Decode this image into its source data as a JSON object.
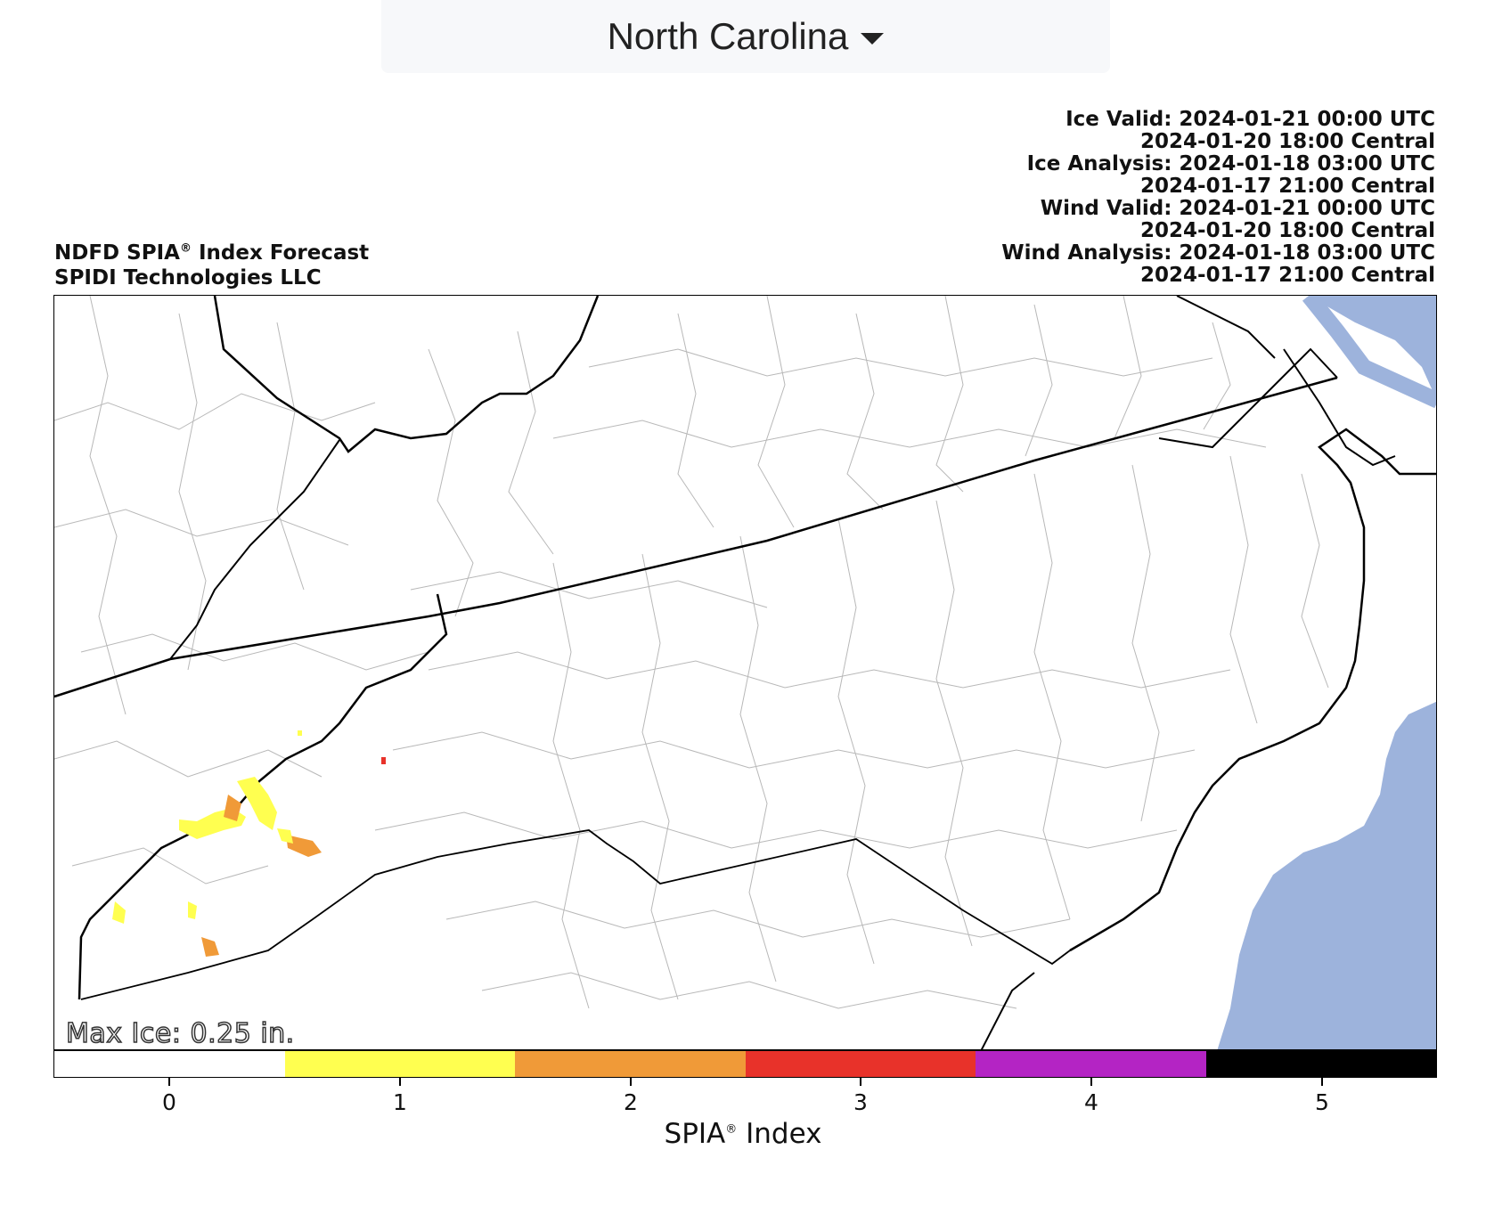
{
  "region_selector": {
    "label": "North Carolina",
    "icon": "caret-down-icon"
  },
  "map": {
    "title_line1": "NDFD SPIA",
    "title_mark": "®",
    "title_line1_rest": " Index Forecast",
    "title_line2": "SPIDI Technologies LLC",
    "times": [
      "Ice Valid: 2024-01-21 00:00 UTC",
      "2024-01-20 18:00 Central",
      "Ice Analysis: 2024-01-18 03:00 UTC",
      "2024-01-17 21:00 Central",
      "Wind Valid: 2024-01-21 00:00 UTC",
      "2024-01-20 18:00 Central",
      "Wind Analysis: 2024-01-18 03:00 UTC",
      "2024-01-17 21:00 Central"
    ],
    "max_ice": "Max Ice: 0.25 in.",
    "colors": {
      "ocean": "#9db3dc",
      "border": "#000000",
      "county": "#b8b8b8"
    }
  },
  "colorbar": {
    "label": "SPIA",
    "label_mark": "®",
    "label_rest": " Index",
    "ticks": [
      "0",
      "1",
      "2",
      "3",
      "4",
      "5"
    ],
    "colors": [
      "#ffffff",
      "#ffff50",
      "#f09a38",
      "#e8322a",
      "#b424c4",
      "#000000"
    ]
  }
}
